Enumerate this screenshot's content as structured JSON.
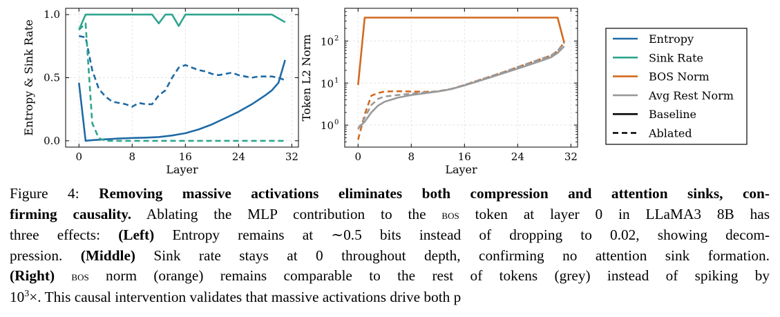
{
  "colors": {
    "entropy": "#1f6aa5",
    "sink_rate": "#2ca58d",
    "bos_norm": "#d2691e",
    "avg_rest_norm": "#999999",
    "grid": "#e3e3e3"
  },
  "legend": {
    "items": [
      {
        "label": "Entropy",
        "color": "#1f6aa5",
        "style": "solid"
      },
      {
        "label": "Sink Rate",
        "color": "#2ca58d",
        "style": "solid"
      },
      {
        "label": "BOS Norm",
        "color": "#d2691e",
        "style": "solid"
      },
      {
        "label": "Avg Rest Norm",
        "color": "#999999",
        "style": "solid"
      },
      {
        "label": "Baseline",
        "color": "#000000",
        "style": "solid"
      },
      {
        "label": "Ablated",
        "color": "#000000",
        "style": "dashed"
      }
    ]
  },
  "chart_data": [
    {
      "type": "line",
      "title": "",
      "xlabel": "Layer",
      "ylabel": "Entropy & Sink Rate",
      "xlim": [
        -2,
        33
      ],
      "ylim": [
        -0.05,
        1.05
      ],
      "xticks": [
        0,
        8,
        16,
        24,
        32
      ],
      "yticks": [
        0.0,
        0.5,
        1.0
      ],
      "ytick_labels": [
        "0.0",
        "0.5",
        "1.0"
      ],
      "grid": true,
      "series": [
        {
          "name": "Entropy (Baseline)",
          "color": "#1f6aa5",
          "style": "solid",
          "x": [
            0,
            1,
            2,
            4,
            6,
            8,
            10,
            12,
            14,
            16,
            18,
            20,
            22,
            24,
            26,
            28,
            29,
            30,
            31
          ],
          "y": [
            0.46,
            0.0,
            0.005,
            0.012,
            0.018,
            0.022,
            0.025,
            0.03,
            0.042,
            0.06,
            0.09,
            0.13,
            0.18,
            0.23,
            0.29,
            0.36,
            0.4,
            0.46,
            0.64
          ]
        },
        {
          "name": "Entropy (Ablated)",
          "color": "#1f6aa5",
          "style": "dashed",
          "x": [
            0,
            1,
            2,
            3,
            4,
            5,
            6,
            7,
            8,
            9,
            10,
            11,
            12,
            13,
            14,
            15,
            16,
            17,
            18,
            19,
            20,
            21,
            22,
            23,
            24,
            25,
            26,
            27,
            28,
            29,
            30,
            31
          ],
          "y": [
            0.83,
            0.82,
            0.56,
            0.41,
            0.35,
            0.31,
            0.3,
            0.29,
            0.27,
            0.3,
            0.29,
            0.29,
            0.36,
            0.4,
            0.5,
            0.58,
            0.6,
            0.58,
            0.56,
            0.55,
            0.53,
            0.52,
            0.53,
            0.54,
            0.52,
            0.51,
            0.5,
            0.51,
            0.51,
            0.51,
            0.5,
            0.48
          ]
        },
        {
          "name": "Sink Rate (Baseline)",
          "color": "#2ca58d",
          "style": "solid",
          "x": [
            0,
            1,
            2,
            3,
            4,
            5,
            6,
            7,
            8,
            9,
            10,
            11,
            12,
            13,
            14,
            15,
            16,
            17,
            18,
            19,
            20,
            21,
            22,
            23,
            24,
            25,
            26,
            27,
            28,
            29,
            30,
            31
          ],
          "y": [
            0.88,
            1.0,
            1.0,
            1.0,
            1.0,
            1.0,
            1.0,
            1.0,
            1.0,
            1.0,
            1.0,
            1.0,
            0.93,
            1.0,
            1.0,
            0.91,
            1.0,
            1.0,
            1.0,
            1.0,
            1.0,
            1.0,
            1.0,
            1.0,
            1.0,
            1.0,
            1.0,
            1.0,
            1.0,
            1.0,
            0.97,
            0.94
          ]
        },
        {
          "name": "Sink Rate (Ablated)",
          "color": "#2ca58d",
          "style": "dashed",
          "x": [
            0,
            1,
            2,
            3,
            4,
            8,
            16,
            24,
            31
          ],
          "y": [
            0.88,
            0.93,
            0.14,
            0.02,
            0.0,
            0.0,
            0.0,
            0.0,
            0.0
          ]
        }
      ]
    },
    {
      "type": "line",
      "title": "",
      "xlabel": "Layer",
      "ylabel": "Token L2 Norm",
      "yscale": "log",
      "xlim": [
        -2,
        33
      ],
      "ylim": [
        0.3,
        600
      ],
      "xticks": [
        0,
        8,
        16,
        24,
        32
      ],
      "yticks": [
        1,
        10,
        100
      ],
      "ytick_labels": [
        "10",
        "10",
        "10"
      ],
      "ytick_exponents": [
        "0",
        "1",
        "2"
      ],
      "grid": true,
      "series": [
        {
          "name": "BOS Norm (Baseline)",
          "color": "#d2691e",
          "style": "solid",
          "x": [
            0,
            1,
            2,
            8,
            16,
            24,
            29,
            30,
            31
          ],
          "y": [
            9,
            360,
            360,
            360,
            360,
            360,
            360,
            360,
            90
          ]
        },
        {
          "name": "BOS Norm (Ablated)",
          "color": "#d2691e",
          "style": "dashed",
          "x": [
            0,
            1,
            2,
            3,
            4,
            6,
            8,
            10,
            12,
            14,
            16,
            18,
            20,
            22,
            24,
            26,
            28,
            29,
            30,
            31
          ],
          "y": [
            0.45,
            1.8,
            5.0,
            5.8,
            6.3,
            6.4,
            6.3,
            6.2,
            6.3,
            7.2,
            9.0,
            11.5,
            14.5,
            18.5,
            24,
            31,
            40,
            45,
            58,
            92
          ]
        },
        {
          "name": "Avg Rest Norm (Baseline)",
          "color": "#999999",
          "style": "solid",
          "x": [
            0,
            1,
            2,
            3,
            4,
            6,
            8,
            10,
            12,
            14,
            16,
            18,
            20,
            22,
            24,
            26,
            28,
            29,
            30,
            31
          ],
          "y": [
            0.85,
            1.2,
            2.0,
            2.9,
            3.6,
            4.5,
            5.2,
            5.7,
            6.3,
            7.2,
            8.8,
            11.0,
            13.8,
            17.5,
            22,
            28,
            36,
            41,
            52,
            75
          ]
        },
        {
          "name": "Avg Rest Norm (Ablated)",
          "color": "#999999",
          "style": "dashed",
          "x": [
            0,
            1,
            2,
            3,
            4,
            6,
            8,
            10,
            12,
            14,
            16,
            18,
            20,
            22,
            24,
            26,
            28,
            29,
            30,
            31
          ],
          "y": [
            0.8,
            1.5,
            3.0,
            4.2,
            4.8,
            5.2,
            5.6,
            6.0,
            6.4,
            7.3,
            9.0,
            11.5,
            14.5,
            18.5,
            24,
            31,
            40,
            45,
            58,
            92
          ]
        }
      ]
    }
  ],
  "caption": {
    "figure_label": "Figure 4:",
    "bold_title_1": "Removing massive activations eliminates both compression and attention sinks, con-",
    "bold_title_2": "firming causality.",
    "line2_text_a": " Ablating the MLP contribution to the ",
    "bos_1": "bos",
    "line2_text_b": " token at layer 0 in LLaMA3 8B has",
    "line3_text_a": "three effects: ",
    "left_label": "(Left)",
    "line3_text_b": " Entropy remains at ∼0.5 bits instead of dropping to 0.02, showing decom-",
    "line4_text_a": "pression. ",
    "middle_label": "(Middle)",
    "line4_text_b": " Sink rate stays at 0 throughout depth, confirming no attention sink formation.",
    "right_label": "(Right)",
    "bos_2": "bos",
    "line5_text": " norm (orange) remains comparable to the rest of tokens (grey) instead of spiking by",
    "line6_base": "10",
    "line6_exp": "3",
    "line6_text": "×. This causal intervention validates that massive activations drive both p"
  }
}
